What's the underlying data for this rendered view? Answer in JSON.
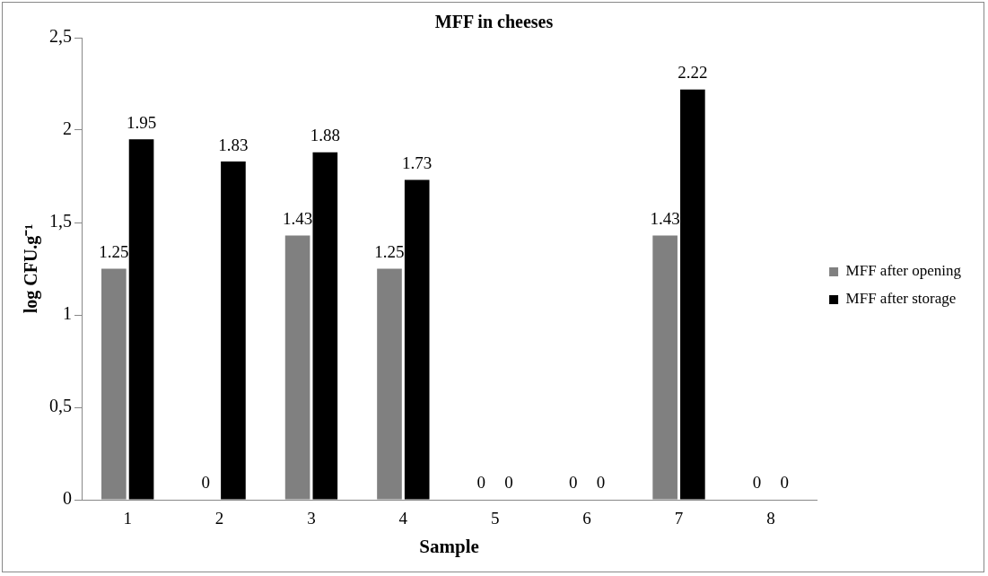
{
  "chart_data": {
    "type": "bar",
    "title": "MFF in cheeses",
    "xlabel": "Sample",
    "ylabel": "log CFU.g⁻¹",
    "categories": [
      "1",
      "2",
      "3",
      "4",
      "5",
      "6",
      "7",
      "8"
    ],
    "series": [
      {
        "name": "MFF after opening",
        "color": "#808080",
        "values": [
          1.25,
          0,
          1.43,
          1.25,
          0,
          0,
          1.43,
          0
        ]
      },
      {
        "name": "MFF after storage",
        "color": "#000000",
        "values": [
          1.95,
          1.83,
          1.88,
          1.73,
          0,
          0,
          2.22,
          0
        ]
      }
    ],
    "ylim": [
      0,
      2.5
    ],
    "yticks": [
      0,
      {
        "value": 0.5,
        "label": "0,5"
      },
      1,
      {
        "value": 1.5,
        "label": "1,5"
      },
      2,
      {
        "value": 2.5,
        "label": "2,5"
      }
    ],
    "data_labels": true,
    "grid": false,
    "legend": "right"
  }
}
